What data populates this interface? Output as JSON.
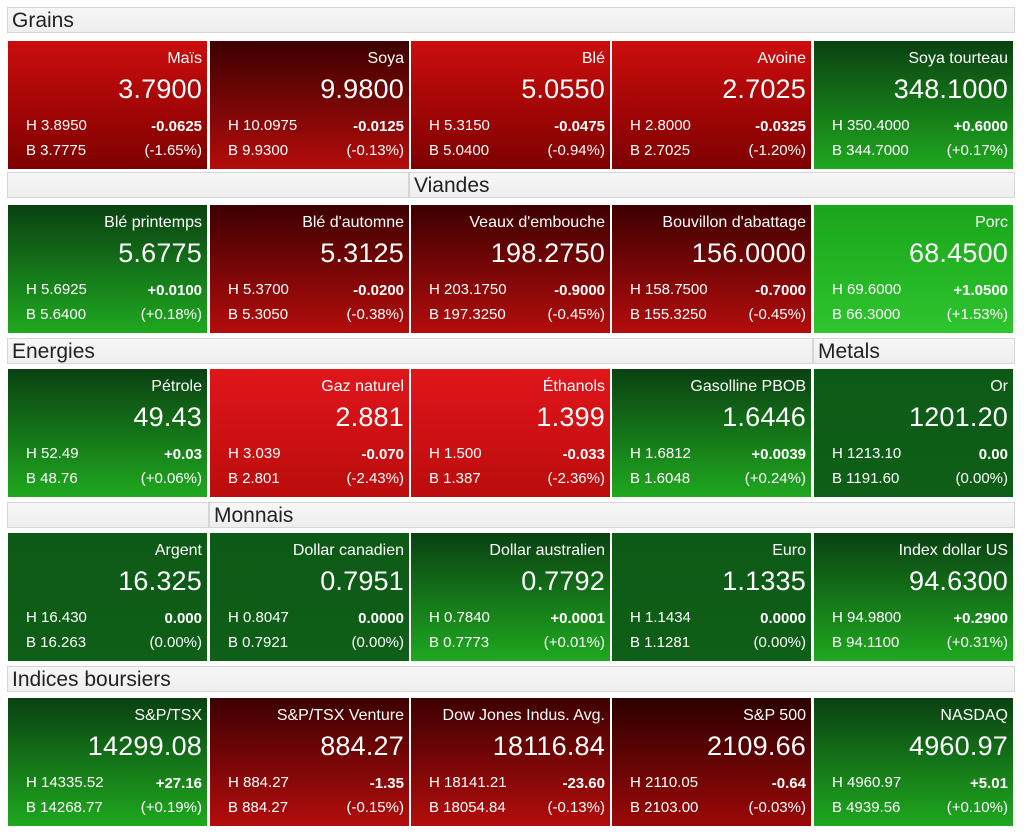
{
  "sections": {
    "grains": "Grains",
    "viandes": "Viandes",
    "energies": "Energies",
    "metals": "Metals",
    "monnais": "Monnais",
    "indices": "Indices boursiers"
  },
  "colors": {
    "red": "#cc0d0d",
    "bright_red": "#e0161b",
    "dark_red": "#3d0000",
    "green": "#1fa81f",
    "bright_green": "#2ec52e",
    "dark_green": "#0a4112"
  },
  "tiles": [
    {
      "name": "Maïs",
      "price": "3.7900",
      "high": "H 3.8950",
      "low": "B 3.7775",
      "change": "-0.0625",
      "pct": "(-1.65%)"
    },
    {
      "name": "Soya",
      "price": "9.9800",
      "high": "H 10.0975",
      "low": "B 9.9300",
      "change": "-0.0125",
      "pct": "(-0.13%)"
    },
    {
      "name": "Blé",
      "price": "5.0550",
      "high": "H 5.3150",
      "low": "B 5.0400",
      "change": "-0.0475",
      "pct": "(-0.94%)"
    },
    {
      "name": "Avoine",
      "price": "2.7025",
      "high": "H 2.8000",
      "low": "B 2.7025",
      "change": "-0.0325",
      "pct": "(-1.20%)"
    },
    {
      "name": "Soya tourteau",
      "price": "348.1000",
      "high": "H 350.4000",
      "low": "B 344.7000",
      "change": "+0.6000",
      "pct": "(+0.17%)"
    },
    {
      "name": "Blé printemps",
      "price": "5.6775",
      "high": "H 5.6925",
      "low": "B 5.6400",
      "change": "+0.0100",
      "pct": "(+0.18%)"
    },
    {
      "name": "Blé d'automne",
      "price": "5.3125",
      "high": "H 5.3700",
      "low": "B 5.3050",
      "change": "-0.0200",
      "pct": "(-0.38%)"
    },
    {
      "name": "Veaux d'embouche",
      "price": "198.2750",
      "high": "H 203.1750",
      "low": "B 197.3250",
      "change": "-0.9000",
      "pct": "(-0.45%)"
    },
    {
      "name": "Bouvillon d'abattage",
      "price": "156.0000",
      "high": "H 158.7500",
      "low": "B 155.3250",
      "change": "-0.7000",
      "pct": "(-0.45%)"
    },
    {
      "name": "Porc",
      "price": "68.4500",
      "high": "H 69.6000",
      "low": "B 66.3000",
      "change": "+1.0500",
      "pct": "(+1.53%)"
    },
    {
      "name": "Pétrole",
      "price": "49.43",
      "high": "H 52.49",
      "low": "B 48.76",
      "change": "+0.03",
      "pct": "(+0.06%)"
    },
    {
      "name": "Gaz naturel",
      "price": "2.881",
      "high": "H 3.039",
      "low": "B 2.801",
      "change": "-0.070",
      "pct": "(-2.43%)"
    },
    {
      "name": "Éthanols",
      "price": "1.399",
      "high": "H 1.500",
      "low": "B 1.387",
      "change": "-0.033",
      "pct": "(-2.36%)"
    },
    {
      "name": "Gasolline PBOB",
      "price": "1.6446",
      "high": "H 1.6812",
      "low": "B 1.6048",
      "change": "+0.0039",
      "pct": "(+0.24%)"
    },
    {
      "name": "Or",
      "price": "1201.20",
      "high": "H 1213.10",
      "low": "B 1191.60",
      "change": "0.00",
      "pct": "(0.00%)"
    },
    {
      "name": "Argent",
      "price": "16.325",
      "high": "H 16.430",
      "low": "B 16.263",
      "change": "0.000",
      "pct": "(0.00%)"
    },
    {
      "name": "Dollar canadien",
      "price": "0.7951",
      "high": "H 0.8047",
      "low": "B 0.7921",
      "change": "0.0000",
      "pct": "(0.00%)"
    },
    {
      "name": "Dollar australien",
      "price": "0.7792",
      "high": "H 0.7840",
      "low": "B 0.7773",
      "change": "+0.0001",
      "pct": "(+0.01%)"
    },
    {
      "name": "Euro",
      "price": "1.1335",
      "high": "H 1.1434",
      "low": "B 1.1281",
      "change": "0.0000",
      "pct": "(0.00%)"
    },
    {
      "name": "Index dollar US",
      "price": "94.6300",
      "high": "H 94.9800",
      "low": "B 94.1100",
      "change": "+0.2900",
      "pct": "(+0.31%)"
    },
    {
      "name": "S&P/TSX",
      "price": "14299.08",
      "high": "H 14335.52",
      "low": "B 14268.77",
      "change": "+27.16",
      "pct": "(+0.19%)"
    },
    {
      "name": "S&P/TSX Venture",
      "price": "884.27",
      "high": "H 884.27",
      "low": "B 884.27",
      "change": "-1.35",
      "pct": "(-0.15%)"
    },
    {
      "name": "Dow Jones Indus. Avg.",
      "price": "18116.84",
      "high": "H 18141.21",
      "low": "B 18054.84",
      "change": "-23.60",
      "pct": "(-0.13%)"
    },
    {
      "name": "S&P 500",
      "price": "2109.66",
      "high": "H 2110.05",
      "low": "B 2103.00",
      "change": "-0.64",
      "pct": "(-0.03%)"
    },
    {
      "name": "NASDAQ",
      "price": "4960.97",
      "high": "H 4960.97",
      "low": "B 4939.56",
      "change": "+5.01",
      "pct": "(+0.10%)"
    }
  ]
}
